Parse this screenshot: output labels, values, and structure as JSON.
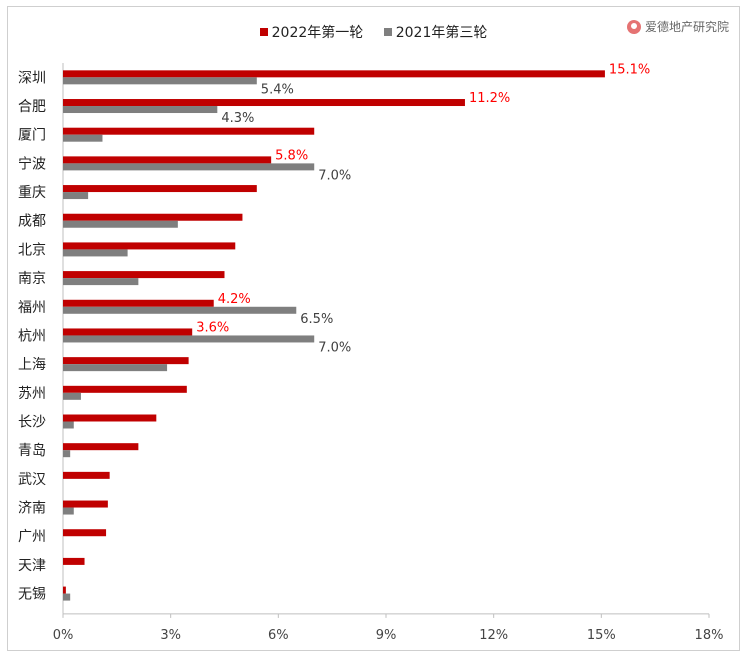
{
  "legend": {
    "series_1": "2022年第一轮",
    "series_2": "2021年第三轮"
  },
  "watermark": "爱德地产研究院",
  "colors": {
    "series_1": "#c00000",
    "series_2": "#7f7f7f",
    "label_highlight": "#ff0000",
    "label_normal": "#404040"
  },
  "chart_data": {
    "type": "bar",
    "orientation": "horizontal",
    "categories": [
      "深圳",
      "合肥",
      "厦门",
      "宁波",
      "重庆",
      "成都",
      "北京",
      "南京",
      "福州",
      "杭州",
      "上海",
      "苏州",
      "长沙",
      "青岛",
      "武汉",
      "济南",
      "广州",
      "天津",
      "无锡"
    ],
    "series": [
      {
        "name": "2022年第一轮",
        "values": [
          15.1,
          11.2,
          7.0,
          5.8,
          5.4,
          5.0,
          4.8,
          4.5,
          4.2,
          3.6,
          3.5,
          3.45,
          2.6,
          2.1,
          1.3,
          1.25,
          1.2,
          0.6,
          0.08
        ],
        "data_labels": {
          "0": "15.1%",
          "1": "11.2%",
          "3": "5.8%",
          "8": "4.2%",
          "9": "3.6%"
        }
      },
      {
        "name": "2021年第三轮",
        "values": [
          5.4,
          4.3,
          1.1,
          7.0,
          0.7,
          3.2,
          1.8,
          2.1,
          6.5,
          7.0,
          2.9,
          0.5,
          0.3,
          0.2,
          0,
          0.3,
          0,
          0,
          0.2
        ],
        "data_labels": {
          "0": "5.4%",
          "1": "4.3%",
          "3": "7.0%",
          "8": "6.5%",
          "9": "7.0%"
        }
      }
    ],
    "x_ticks": [
      "0%",
      "3%",
      "6%",
      "9%",
      "12%",
      "15%",
      "18%"
    ],
    "xlim": [
      0,
      18
    ],
    "legend_position": "top-center",
    "grid": false
  }
}
